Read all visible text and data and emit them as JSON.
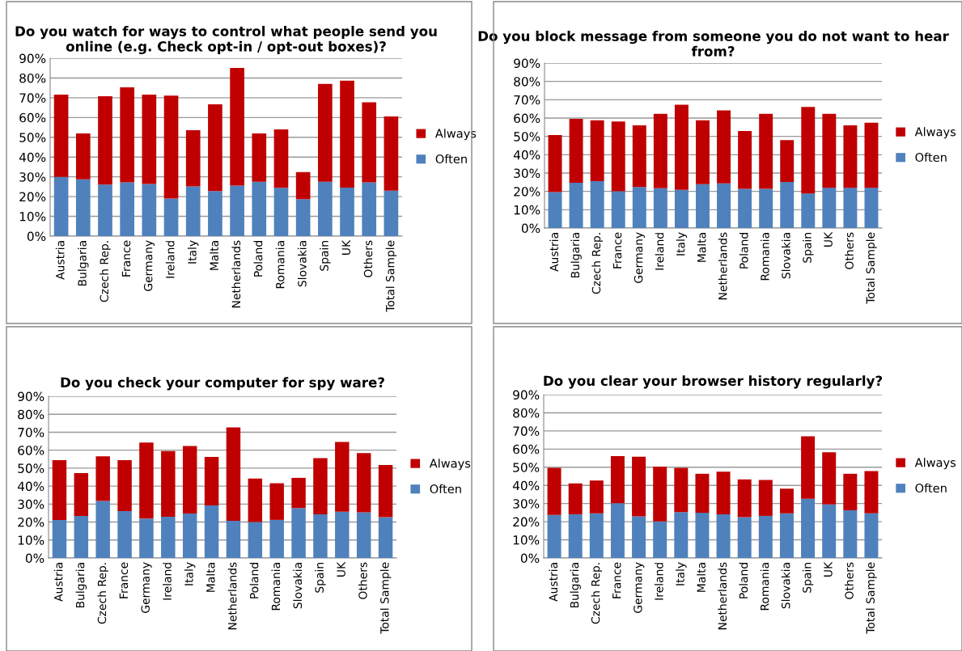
{
  "chart_data": [
    {
      "type": "bar",
      "stacked": true,
      "title": "Do you watch for ways to control what people send you online (e.g. Check opt-in / opt-out boxes)?",
      "categories": [
        "Austria",
        "Bulgaria",
        "Czech Rep.",
        "France",
        "Germany",
        "Ireland",
        "Italy",
        "Malta",
        "Netherlands",
        "Poland",
        "Romania",
        "Slovakia",
        "Spain",
        "UK",
        "Others",
        "Total Sample"
      ],
      "series": [
        {
          "name": "Often",
          "color": "#4f81bd",
          "values": [
            30,
            28.7,
            26.1,
            27.2,
            26.4,
            19,
            25.2,
            22.8,
            25.6,
            27.5,
            24.4,
            18.7,
            27.5,
            24.5,
            27.2,
            23
          ]
        },
        {
          "name": "Always",
          "color": "#c00000",
          "values": [
            41.6,
            23.3,
            44.7,
            48.1,
            45.2,
            52.1,
            28.4,
            43.9,
            59.5,
            24.5,
            29.6,
            13.7,
            49.5,
            54.1,
            40.5,
            37.5
          ]
        }
      ],
      "ylim": [
        0,
        90
      ],
      "yticks": [
        {
          "value": 0,
          "label": "0%"
        },
        {
          "value": 10,
          "label": "10%"
        },
        {
          "value": 20,
          "label": "20%"
        },
        {
          "value": 30,
          "label": "30%"
        },
        {
          "value": 40,
          "label": "40%"
        },
        {
          "value": 50,
          "label": "50%"
        },
        {
          "value": 60,
          "label": "60%"
        },
        {
          "value": 70,
          "label": "70%"
        },
        {
          "value": 80,
          "label": "80%"
        },
        {
          "value": 90,
          "label": "90%"
        }
      ],
      "grid": "y",
      "legend": "right"
    },
    {
      "type": "bar",
      "stacked": true,
      "title": "Do you block message from someone you do not want to hear from?",
      "categories": [
        "Austria",
        "Bulgaria",
        "Czech Rep.",
        "France",
        "Germany",
        "Ireland",
        "Italy",
        "Malta",
        "Netherlands",
        "Poland",
        "Romania",
        "Slovakia",
        "Spain",
        "UK",
        "Others",
        "Total Sample"
      ],
      "series": [
        {
          "name": "Often",
          "color": "#4f81bd",
          "values": [
            19.6,
            24.7,
            25.6,
            20.1,
            22.4,
            21.7,
            20.8,
            23.9,
            24.4,
            21.4,
            21.4,
            25.1,
            18.9,
            22,
            22,
            22
          ]
        },
        {
          "name": "Always",
          "color": "#c00000",
          "values": [
            31.1,
            34.9,
            33.2,
            38,
            33.6,
            40.6,
            46.5,
            34.9,
            39.8,
            31.5,
            40.9,
            22.9,
            47.2,
            40.3,
            34,
            35.5
          ]
        }
      ],
      "ylim": [
        0,
        90
      ],
      "yticks": [
        {
          "value": 0,
          "label": "0%"
        },
        {
          "value": 10,
          "label": "10%"
        },
        {
          "value": 20,
          "label": "20%"
        },
        {
          "value": 30,
          "label": "30%"
        },
        {
          "value": 40,
          "label": "40%"
        },
        {
          "value": 50,
          "label": "50%"
        },
        {
          "value": 60,
          "label": "60%"
        },
        {
          "value": 70,
          "label": "70%"
        },
        {
          "value": 80,
          "label": "80%"
        },
        {
          "value": 90,
          "label": "90%"
        }
      ],
      "grid": "y",
      "legend": "right"
    },
    {
      "type": "bar",
      "stacked": true,
      "title": "Do you check your computer for spy ware?",
      "categories": [
        "Austria",
        "Bulgaria",
        "Czech Rep.",
        "France",
        "Germany",
        "Ireland",
        "Italy",
        "Malta",
        "Netherlands",
        "Poland",
        "Romania",
        "Slovakia",
        "Spain",
        "UK",
        "Others",
        "Total Sample"
      ],
      "series": [
        {
          "name": "Often",
          "color": "#4f81bd",
          "values": [
            21.2,
            23.4,
            31.7,
            26.1,
            21.9,
            23,
            24.8,
            29.3,
            20.7,
            20,
            21.2,
            27.8,
            24.3,
            25.8,
            25.4,
            22.7
          ]
        },
        {
          "name": "Always",
          "color": "#c00000",
          "values": [
            33.2,
            23.9,
            24.9,
            28.3,
            42.3,
            36.5,
            37.5,
            27,
            52,
            24.2,
            20.4,
            16.8,
            31.3,
            38.8,
            33,
            29
          ]
        }
      ],
      "ylim": [
        0,
        90
      ],
      "yticks": [
        {
          "value": 0,
          "label": "0%"
        },
        {
          "value": 10,
          "label": "10%"
        },
        {
          "value": 20,
          "label": "20%"
        },
        {
          "value": 30,
          "label": "30%"
        },
        {
          "value": 40,
          "label": "40%"
        },
        {
          "value": 50,
          "label": "50%"
        },
        {
          "value": 60,
          "label": "60%"
        },
        {
          "value": 70,
          "label": "70%"
        },
        {
          "value": 80,
          "label": "80%"
        },
        {
          "value": 90,
          "label": "90%"
        }
      ],
      "grid": "y",
      "legend": "right"
    },
    {
      "type": "bar",
      "stacked": true,
      "title": "Do you clear your browser history regularly?",
      "categories": [
        "Austria",
        "Bulgaria",
        "Czech Rep.",
        "France",
        "Germany",
        "Ireland",
        "Italy",
        "Malta",
        "Netherlands",
        "Poland",
        "Romania",
        "Slovakia",
        "Spain",
        "UK",
        "Others",
        "Total Sample"
      ],
      "series": [
        {
          "name": "Often",
          "color": "#4f81bd",
          "values": [
            23.7,
            24.1,
            24.6,
            30.2,
            22.9,
            20.2,
            25.3,
            24.9,
            24.1,
            22.5,
            23.2,
            24.6,
            32.6,
            29.5,
            26.3,
            24.6
          ]
        },
        {
          "name": "Always",
          "color": "#c00000",
          "values": [
            26,
            17,
            18.1,
            25.9,
            32.9,
            30.2,
            24.4,
            21.5,
            23.5,
            20.8,
            19.8,
            13.6,
            34.5,
            28.7,
            20.1,
            23.3
          ]
        }
      ],
      "ylim": [
        0,
        90
      ],
      "yticks": [
        {
          "value": 0,
          "label": "0%"
        },
        {
          "value": 10,
          "label": "10%"
        },
        {
          "value": 20,
          "label": "20%"
        },
        {
          "value": 30,
          "label": "30%"
        },
        {
          "value": 40,
          "label": "40%"
        },
        {
          "value": 50,
          "label": "50%"
        },
        {
          "value": 60,
          "label": "60%"
        },
        {
          "value": 70,
          "label": "70%"
        },
        {
          "value": 80,
          "label": "80%"
        },
        {
          "value": 90,
          "label": "90%"
        }
      ],
      "grid": "y",
      "legend": "right"
    }
  ]
}
